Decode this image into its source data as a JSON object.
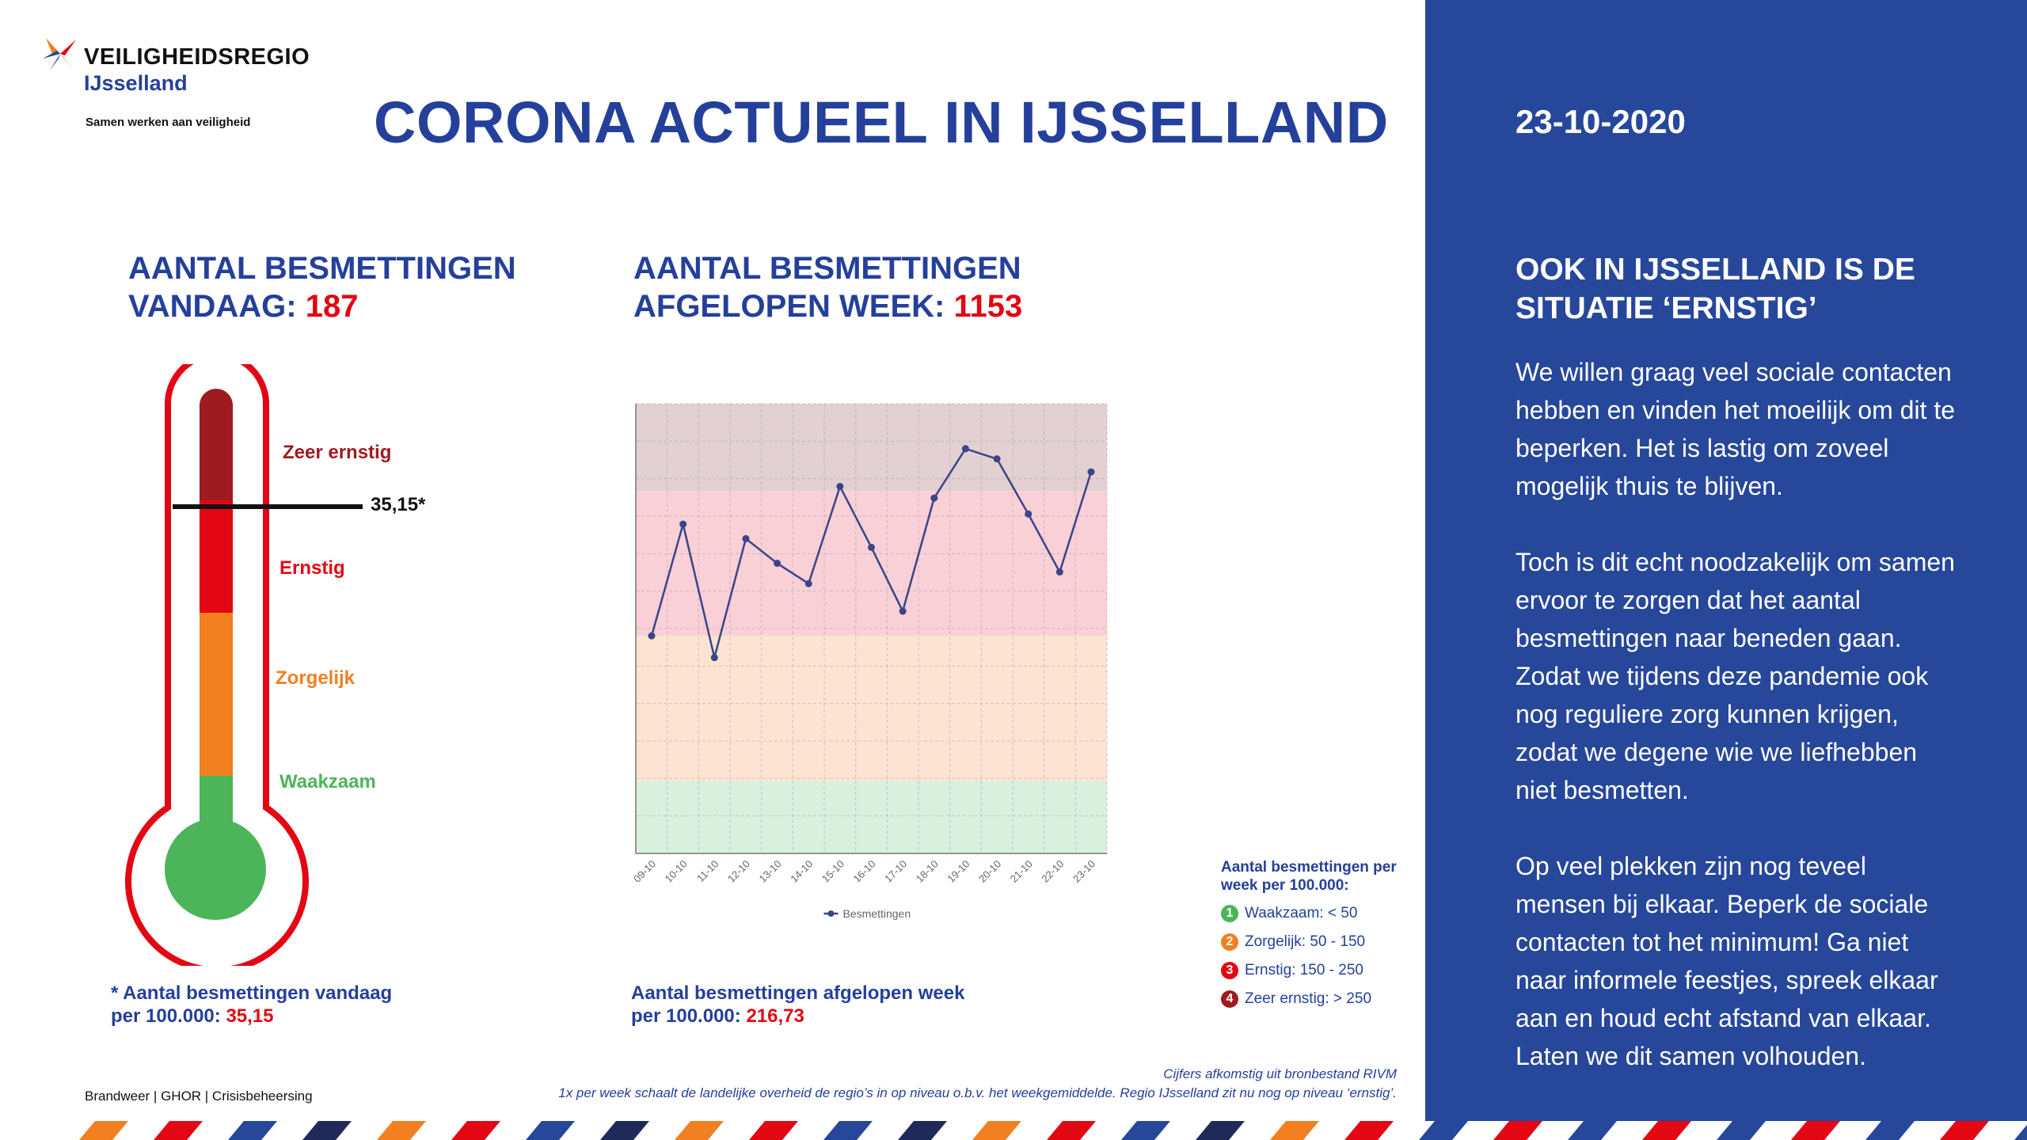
{
  "logo": {
    "name": "VEILIGHEIDSREGIO",
    "sub": "IJsselland",
    "tagline": "Samen werken aan veiligheid"
  },
  "title": "CORONA ACTUEEL IN IJSSELLAND",
  "today": {
    "heading_line1": "AANTAL BESMETTINGEN",
    "heading_line2_prefix": "VANDAAG:",
    "count": "187",
    "threshold_label": "35,15*",
    "levels": {
      "zeer_ernstig": "Zeer ernstig",
      "ernstig": "Ernstig",
      "zorgelijk": "Zorgelijk",
      "waakzaam": "Waakzaam"
    },
    "footnote_line1": "* Aantal besmettingen vandaag",
    "footnote_line2_prefix": "per 100.000:",
    "footnote_value": "35,15"
  },
  "week": {
    "heading_line1": "AANTAL BESMETTINGEN",
    "heading_line2_prefix": "AFGELOPEN WEEK:",
    "count": "1153",
    "footnote_line1": "Aantal besmettingen afgelopen week",
    "footnote_line2_prefix": "per 100.000:",
    "footnote_value": "216,73"
  },
  "chart_data": {
    "type": "line",
    "categories": [
      "09-10",
      "10-10",
      "11-10",
      "12-10",
      "13-10",
      "14-10",
      "15-10",
      "16-10",
      "17-10",
      "18-10",
      "19-10",
      "20-10",
      "21-10",
      "22-10",
      "23-10"
    ],
    "series": [
      {
        "name": "Besmettingen",
        "values": [
          150,
          227,
          135,
          217,
          200,
          186,
          253,
          211,
          167,
          245,
          279,
          272,
          234,
          194,
          263
        ]
      }
    ],
    "ylim": [
      0,
      310
    ],
    "bands": [
      {
        "from": 0,
        "to": 50,
        "color": "#daf0df"
      },
      {
        "from": 50,
        "to": 150,
        "color": "#fde4d2"
      },
      {
        "from": 150,
        "to": 250,
        "color": "#f8d0d6"
      },
      {
        "from": 250,
        "to": 310,
        "color": "#e2d0d2"
      }
    ],
    "grid": true,
    "legend": "bottom",
    "line_color": "#3b4588"
  },
  "legend_box": {
    "title_line1": "Aantal besmettingen per",
    "title_line2": "week per 100.000:",
    "items": [
      {
        "num": "1",
        "label": "Waakzaam: < 50",
        "color": "#4cb55a"
      },
      {
        "num": "2",
        "label": "Zorgelijk: 50 - 150",
        "color": "#f28021"
      },
      {
        "num": "3",
        "label": "Ernstig: 150 - 250",
        "color": "#e30613"
      },
      {
        "num": "4",
        "label": "Zeer ernstig: > 250",
        "color": "#9e1b20"
      }
    ]
  },
  "notes": {
    "line1": "Cijfers afkomstig uit bronbestand RIVM",
    "line2": "1x per week schaalt de landelijke overheid de regio’s in op niveau o.b.v. het weekgemiddelde. Regio IJsselland zit nu nog op niveau ‘ernstig’."
  },
  "services": "Brandweer | GHOR | Crisisbeheersing",
  "panel": {
    "date": "23-10-2020",
    "heading": "OOK IN IJSSELLAND IS DE SITUATIE ‘ERNSTIG’",
    "p1": "We willen graag veel sociale contacten hebben en vinden het moeilijk om dit te beperken. Het is lastig om zoveel mogelijk thuis te blijven.",
    "p2": "Toch is dit echt noodzakelijk om samen ervoor te zorgen dat het aantal besmettingen naar beneden gaan. Zodat we tijdens deze pandemie ook nog reguliere zorg kunnen krijgen, zodat we degene wie we liefhebben niet besmetten.",
    "p3": "Op veel plekken zijn nog teveel mensen bij elkaar. Beperk de sociale contacten tot het minimum! Ga niet naar informele feestjes, spreek elkaar aan en houd echt afstand van elkaar. Laten we dit samen volhouden."
  },
  "colors": {
    "brand_blue": "#24409a",
    "panel_blue": "#26479a",
    "red": "#e30613",
    "dark_red": "#9e1b20",
    "orange": "#f28021",
    "green": "#4cb55a"
  }
}
